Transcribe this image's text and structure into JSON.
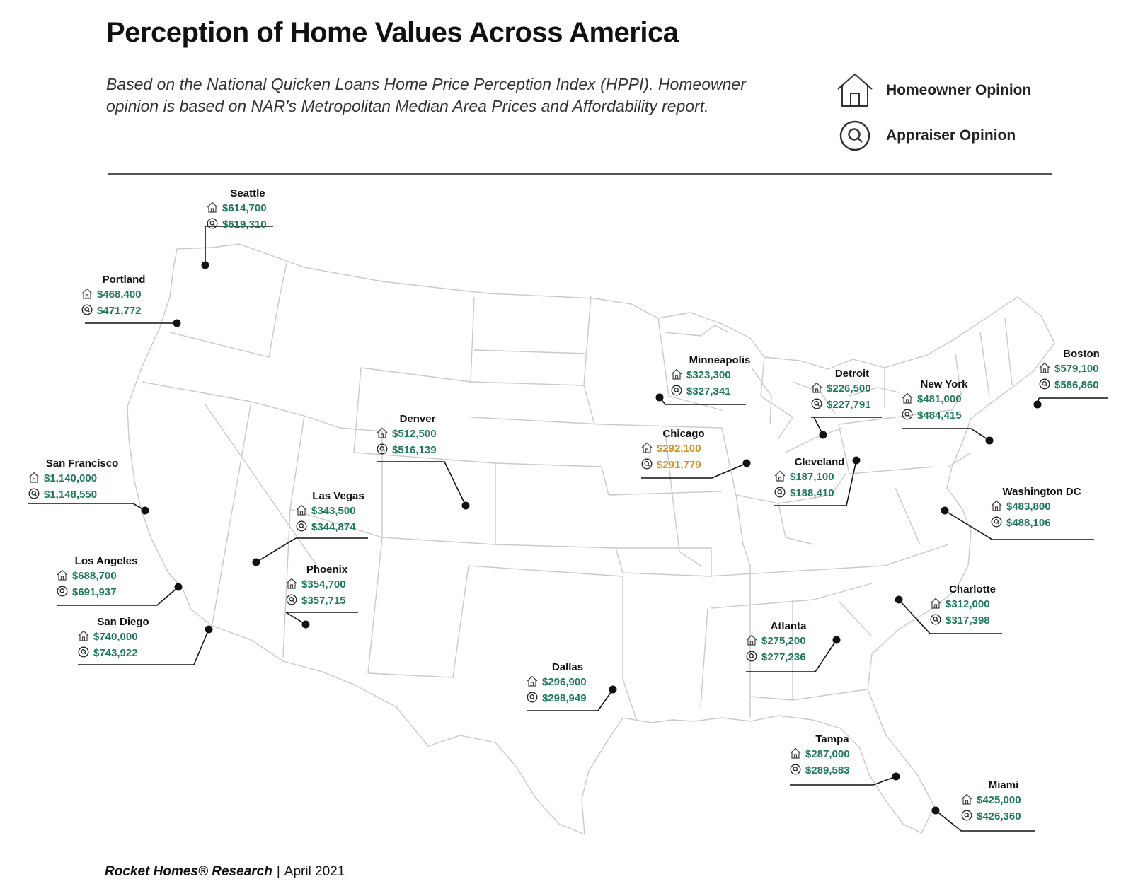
{
  "title": "Perception of Home Values Across America",
  "subtitle": "Based on the National Quicken Loans Home Price Perception Index (HPPI). Homeowner opinion is based on NAR's Metropolitan Median Area Prices and Affordability report.",
  "legend": {
    "homeowner_label": "Homeowner Opinion",
    "homeowner_icon": "house-icon",
    "appraiser_label": "Appraiser Opinion",
    "appraiser_icon": "appraiser-magnifier-icon"
  },
  "colors": {
    "price": "#1f7a5c",
    "highlight": "#d4911f",
    "border": "#c9c9c9",
    "leader": "#111111"
  },
  "cities": [
    {
      "name": "Seattle",
      "homeowner": "$614,700",
      "appraiser": "$619,310"
    },
    {
      "name": "Portland",
      "homeowner": "$468,400",
      "appraiser": "$471,772"
    },
    {
      "name": "San Francisco",
      "homeowner": "$1,140,000",
      "appraiser": "$1,148,550"
    },
    {
      "name": "Los Angeles",
      "homeowner": "$688,700",
      "appraiser": "$691,937"
    },
    {
      "name": "San Diego",
      "homeowner": "$740,000",
      "appraiser": "$743,922"
    },
    {
      "name": "Las Vegas",
      "homeowner": "$343,500",
      "appraiser": "$344,874"
    },
    {
      "name": "Phoenix",
      "homeowner": "$354,700",
      "appraiser": "$357,715"
    },
    {
      "name": "Denver",
      "homeowner": "$512,500",
      "appraiser": "$516,139"
    },
    {
      "name": "Dallas",
      "homeowner": "$296,900",
      "appraiser": "$298,949"
    },
    {
      "name": "Minneapolis",
      "homeowner": "$323,300",
      "appraiser": "$327,341"
    },
    {
      "name": "Chicago",
      "homeowner": "$292,100",
      "appraiser": "$291,779",
      "highlight": true
    },
    {
      "name": "Detroit",
      "homeowner": "$226,500",
      "appraiser": "$227,791"
    },
    {
      "name": "Cleveland",
      "homeowner": "$187,100",
      "appraiser": "$188,410"
    },
    {
      "name": "New York",
      "homeowner": "$481,000",
      "appraiser": "$484,415"
    },
    {
      "name": "Boston",
      "homeowner": "$579,100",
      "appraiser": "$586,860"
    },
    {
      "name": "Washington DC",
      "homeowner": "$483,800",
      "appraiser": "$488,106"
    },
    {
      "name": "Charlotte",
      "homeowner": "$312,000",
      "appraiser": "$317,398"
    },
    {
      "name": "Atlanta",
      "homeowner": "$275,200",
      "appraiser": "$277,236"
    },
    {
      "name": "Tampa",
      "homeowner": "$287,000",
      "appraiser": "$289,583"
    },
    {
      "name": "Miami",
      "homeowner": "$425,000",
      "appraiser": "$426,360"
    }
  ],
  "footer": {
    "brand": "Rocket Homes® Research",
    "date": "April 2021"
  }
}
